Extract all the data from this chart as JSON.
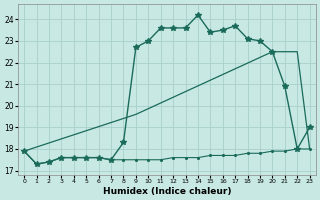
{
  "xlabel": "Humidex (Indice chaleur)",
  "background_color": "#c8e8e4",
  "grid_color": "#a8d0cc",
  "line_color": "#1a6b5a",
  "xlim": [
    -0.5,
    23.5
  ],
  "ylim": [
    16.8,
    24.7
  ],
  "yticks": [
    17,
    18,
    19,
    20,
    21,
    22,
    23,
    24
  ],
  "xticks": [
    0,
    1,
    2,
    3,
    4,
    5,
    6,
    7,
    8,
    9,
    10,
    11,
    12,
    13,
    14,
    15,
    16,
    17,
    18,
    19,
    20,
    21,
    22,
    23
  ],
  "series1_x": [
    0,
    1,
    2,
    3,
    4,
    5,
    6,
    7,
    8,
    9,
    10,
    11,
    12,
    13,
    14,
    15,
    16,
    17,
    18,
    19,
    20,
    21,
    22,
    23
  ],
  "series1_y": [
    17.9,
    17.3,
    17.4,
    17.6,
    17.6,
    17.6,
    17.6,
    17.5,
    18.3,
    22.7,
    23.0,
    23.6,
    23.6,
    23.6,
    24.2,
    23.4,
    23.5,
    23.7,
    23.1,
    23.0,
    22.5,
    20.9,
    18.0,
    19.0
  ],
  "series2_x": [
    0,
    1,
    2,
    3,
    4,
    5,
    6,
    7,
    8,
    9,
    10,
    11,
    12,
    13,
    14,
    15,
    16,
    17,
    18,
    19,
    20,
    21,
    22,
    23
  ],
  "series2_y": [
    17.9,
    17.3,
    17.4,
    17.6,
    17.6,
    17.6,
    17.6,
    17.5,
    17.5,
    17.5,
    17.5,
    17.5,
    17.6,
    17.6,
    17.6,
    17.7,
    17.7,
    17.7,
    17.8,
    17.8,
    17.9,
    17.9,
    18.0,
    18.0
  ],
  "series3_x": [
    0,
    9,
    20,
    22,
    23
  ],
  "series3_y": [
    17.9,
    19.6,
    22.5,
    22.5,
    18.0
  ]
}
